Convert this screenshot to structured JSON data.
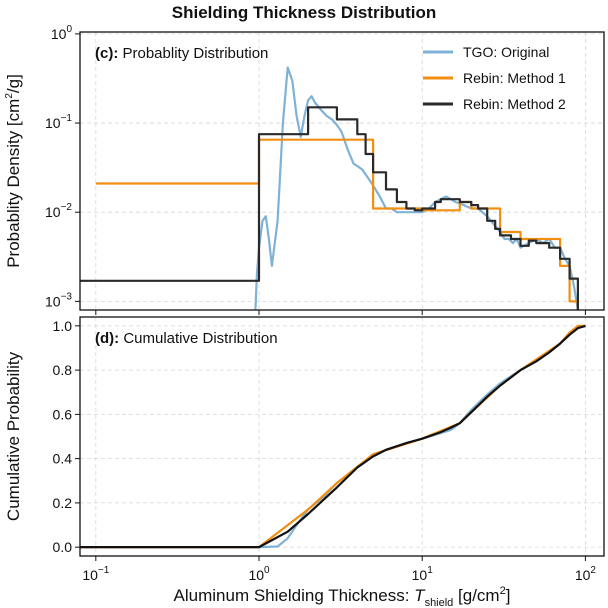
{
  "chart_data": {
    "title": "Shielding Thickness Distribution",
    "xlabel_prefix": "Aluminum Shielding Thickness: ",
    "xlabel_var": "T",
    "xlabel_sub": "shield",
    "xlabel_unit_pre": " [g/cm",
    "xlabel_unit_sup": "2",
    "xlabel_unit_post": "]",
    "x_scale": "log",
    "xlim": [
      0.08,
      130
    ],
    "x_ticks": [
      {
        "value": 0.1,
        "base": "10",
        "exp": "−1"
      },
      {
        "value": 1,
        "base": "10",
        "exp": "0"
      },
      {
        "value": 10,
        "base": "10",
        "exp": "1"
      },
      {
        "value": 100,
        "base": "10",
        "exp": "2"
      }
    ],
    "legend": {
      "placement": "top-right",
      "entries": [
        {
          "series": "TGO: Original",
          "color": "#7fb2d6"
        },
        {
          "series": "Rebin: Method 1",
          "color": "#f28e10"
        },
        {
          "series": "Rebin: Method 2",
          "color": "#2a2a2a"
        }
      ]
    },
    "panels": [
      {
        "id": "pdf",
        "type": "line",
        "tag": "(c):",
        "label": "Probablity Distribution",
        "ylabel_pre": "Probablity Density [cm",
        "ylabel_sup": "2",
        "ylabel_post": "/g]",
        "y_scale": "log",
        "ylim": [
          0.0008,
          1.05
        ],
        "y_ticks": [
          {
            "value": 0.001,
            "base": "10",
            "exp": "−3"
          },
          {
            "value": 0.01,
            "base": "10",
            "exp": "−2"
          },
          {
            "value": 0.1,
            "base": "10",
            "exp": "−1"
          },
          {
            "value": 1,
            "base": "10",
            "exp": "0"
          }
        ],
        "grid": true,
        "series": [
          {
            "name": "TGO: Original",
            "color": "#7fb2d6",
            "step": false,
            "x": [
              0.95,
              0.97,
              1.0,
              1.05,
              1.1,
              1.15,
              1.2,
              1.3,
              1.4,
              1.5,
              1.6,
              1.7,
              1.8,
              1.9,
              2.0,
              2.1,
              2.2,
              2.4,
              2.6,
              2.8,
              3.0,
              3.2,
              3.5,
              3.8,
              4.0,
              4.3,
              4.6,
              5.0,
              5.5,
              6.0,
              6.5,
              7.0,
              8.0,
              9.0,
              10,
              11,
              12,
              13,
              14,
              15,
              16,
              18,
              20,
              22,
              25,
              28,
              30,
              32,
              34,
              36,
              38,
              40,
              45,
              50,
              55,
              60,
              65,
              70,
              75,
              80,
              85,
              90
            ],
            "y": [
              0.0008,
              0.002,
              0.004,
              0.008,
              0.009,
              0.005,
              0.0025,
              0.008,
              0.1,
              0.42,
              0.3,
              0.12,
              0.07,
              0.12,
              0.18,
              0.2,
              0.17,
              0.14,
              0.12,
              0.11,
              0.095,
              0.08,
              0.05,
              0.035,
              0.033,
              0.03,
              0.025,
              0.02,
              0.015,
              0.011,
              0.011,
              0.01,
              0.01,
              0.01,
              0.01,
              0.011,
              0.013,
              0.014,
              0.015,
              0.014,
              0.013,
              0.012,
              0.011,
              0.011,
              0.009,
              0.007,
              0.006,
              0.005,
              0.005,
              0.0045,
              0.005,
              0.004,
              0.0045,
              0.005,
              0.0045,
              0.005,
              0.004,
              0.004,
              0.003,
              0.0025,
              0.0015,
              0.0008
            ]
          },
          {
            "name": "Rebin: Method 1",
            "color": "#f28e10",
            "step": true,
            "x": [
              0.1,
              1.0,
              5.0,
              10,
              17,
              20,
              30,
              40,
              70,
              80,
              90
            ],
            "y": [
              0.021,
              0.065,
              0.011,
              0.0105,
              0.013,
              0.011,
              0.006,
              0.005,
              0.0025,
              0.001,
              0.0008
            ]
          },
          {
            "name": "Rebin: Method 2",
            "color": "#2a2a2a",
            "step": true,
            "x": [
              0.08,
              1.0,
              1.5,
              2.0,
              3.0,
              4.0,
              4.5,
              5.0,
              6.0,
              7.0,
              8.0,
              9.0,
              10,
              12,
              13,
              15,
              17,
              20,
              22,
              25,
              28,
              30,
              35,
              40,
              45,
              50,
              60,
              70,
              80,
              90
            ],
            "y": [
              0.0017,
              0.075,
              0.075,
              0.15,
              0.11,
              0.075,
              0.045,
              0.028,
              0.018,
              0.013,
              0.011,
              0.0105,
              0.011,
              0.013,
              0.014,
              0.014,
              0.013,
              0.012,
              0.011,
              0.008,
              0.0065,
              0.0055,
              0.005,
              0.0042,
              0.0048,
              0.0045,
              0.004,
              0.003,
              0.0018,
              0.0008
            ]
          }
        ]
      },
      {
        "id": "cdf",
        "type": "line",
        "tag": "(d):",
        "label": "Cumulative Distribution",
        "ylabel": "Cumulative Probability",
        "y_scale": "linear",
        "ylim": [
          -0.04,
          1.04
        ],
        "y_ticks": [
          {
            "value": 0.0,
            "label": "0.0"
          },
          {
            "value": 0.2,
            "label": "0.2"
          },
          {
            "value": 0.4,
            "label": "0.4"
          },
          {
            "value": 0.6,
            "label": "0.6"
          },
          {
            "value": 0.8,
            "label": "0.8"
          },
          {
            "value": 1.0,
            "label": "1.0"
          }
        ],
        "grid": true,
        "series": [
          {
            "name": "TGO: Original",
            "color": "#7fb2d6",
            "step": false,
            "x": [
              0.08,
              1.0,
              1.3,
              1.5,
              1.7,
              2.0,
              2.5,
              3.0,
              4.0,
              5.0,
              6.0,
              8.0,
              10,
              15,
              17,
              20,
              25,
              30,
              40,
              50,
              60,
              70,
              80,
              90,
              100
            ],
            "y": [
              0.0,
              0.0,
              0.003,
              0.04,
              0.1,
              0.17,
              0.23,
              0.29,
              0.36,
              0.41,
              0.44,
              0.47,
              0.49,
              0.53,
              0.56,
              0.62,
              0.69,
              0.74,
              0.8,
              0.84,
              0.88,
              0.92,
              0.96,
              0.99,
              1.0
            ]
          },
          {
            "name": "Rebin: Method 1",
            "color": "#f28e10",
            "step": false,
            "x": [
              0.08,
              1.0,
              2.0,
              3.0,
              5.0,
              10,
              17,
              20,
              30,
              40,
              70,
              80,
              90,
              100
            ],
            "y": [
              0.0,
              0.0,
              0.17,
              0.29,
              0.42,
              0.49,
              0.56,
              0.61,
              0.73,
              0.8,
              0.92,
              0.97,
              1.0,
              1.0
            ]
          },
          {
            "name": "Rebin: Method 2",
            "color": "#111111",
            "step": false,
            "x": [
              0.08,
              1.0,
              1.5,
              2.0,
              3.0,
              4.0,
              5.0,
              6.0,
              8.0,
              10,
              13,
              15,
              17,
              20,
              25,
              30,
              40,
              50,
              60,
              70,
              80,
              90,
              100
            ],
            "y": [
              0.0,
              0.0,
              0.07,
              0.15,
              0.27,
              0.36,
              0.41,
              0.44,
              0.47,
              0.49,
              0.52,
              0.54,
              0.56,
              0.61,
              0.68,
              0.73,
              0.8,
              0.84,
              0.88,
              0.92,
              0.96,
              0.99,
              1.0
            ]
          }
        ]
      }
    ]
  }
}
